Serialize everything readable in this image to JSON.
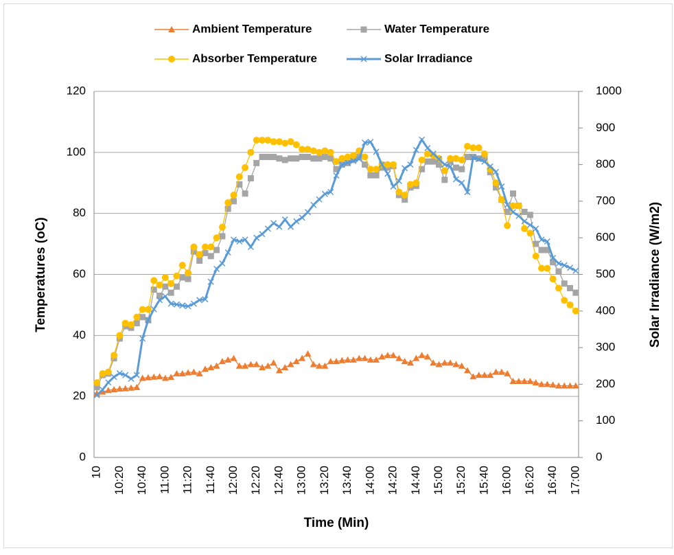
{
  "chart_data": {
    "type": "line",
    "x_label": "Time (Min)",
    "y_label": "Temperatures (oC)",
    "y2_label": "Solar Irradiance (W/m2)",
    "categories": [
      "10",
      null,
      null,
      null,
      "10:20",
      null,
      null,
      null,
      "10:40",
      null,
      null,
      null,
      "11:00",
      null,
      null,
      null,
      "11:20",
      null,
      null,
      null,
      "11:40",
      null,
      null,
      null,
      "12:00",
      null,
      null,
      null,
      "12:20",
      null,
      null,
      null,
      "12:40",
      null,
      null,
      null,
      "13:00",
      null,
      null,
      null,
      "13:20",
      null,
      null,
      null,
      "13:40",
      null,
      null,
      null,
      "14:00",
      null,
      null,
      null,
      "14:20",
      null,
      null,
      null,
      "14:40",
      null,
      null,
      null,
      "15:00",
      null,
      null,
      null,
      "15:20",
      null,
      null,
      null,
      "15:40",
      null,
      null,
      null,
      "16:00",
      null,
      null,
      null,
      "16:20",
      null,
      null,
      null,
      "16:40",
      null,
      null,
      null,
      "17:00"
    ],
    "series": [
      {
        "name": "Ambient Temperature",
        "color": "#ED7D31",
        "marker": "triangle",
        "values": [
          21,
          21.5,
          22,
          22.3,
          22.5,
          22.6,
          22.8,
          23,
          26,
          26.2,
          26.4,
          26.5,
          26,
          26.3,
          27.5,
          27.5,
          27.8,
          28,
          27.5,
          29,
          29.5,
          30,
          31.5,
          32,
          32.5,
          30,
          30,
          30.5,
          30.5,
          29.5,
          30,
          31,
          28.5,
          29.5,
          30.5,
          31.5,
          32.5,
          34,
          30.5,
          30,
          30,
          31.5,
          31.5,
          31.8,
          32,
          32,
          32.5,
          32.5,
          32,
          32,
          33,
          33.5,
          33.5,
          32.5,
          31.5,
          31,
          32.5,
          33.5,
          33,
          31,
          30.5,
          31,
          31,
          30.5,
          30,
          28.5,
          26.5,
          27,
          27,
          27,
          28,
          28,
          27.5,
          25,
          25,
          25,
          25,
          24.5,
          24,
          24,
          23.8,
          23.5,
          23.5,
          23.5,
          23.5
        ]
      },
      {
        "name": "Water Temperature",
        "color": "#A5A5A5",
        "marker": "square",
        "values": [
          23,
          27,
          27.5,
          32.5,
          39,
          43,
          42.5,
          44,
          46,
          45,
          55,
          53,
          56,
          54,
          56,
          59,
          58.5,
          67.5,
          64.5,
          67,
          66,
          68,
          72.5,
          81.5,
          84,
          89.5,
          86.5,
          91.5,
          96.5,
          98.5,
          98.5,
          98.5,
          98,
          97.5,
          98,
          98,
          98.5,
          98.5,
          98,
          98,
          98.5,
          98,
          94.5,
          96,
          96.5,
          97.5,
          98.5,
          96,
          92.5,
          92.5,
          95,
          95,
          95.5,
          86,
          84.5,
          88.5,
          89,
          94.5,
          97,
          97,
          96,
          91,
          97,
          95,
          94.5,
          98.5,
          98.5,
          98,
          98,
          93.5,
          88.5,
          84.5,
          80.5,
          86.5,
          82.5,
          80.5,
          79.5,
          70,
          68,
          68,
          64,
          61,
          57,
          55.5,
          54
        ]
      },
      {
        "name": "Absorber Temperature",
        "color": "#FFC000",
        "marker": "circle",
        "values": [
          24.5,
          27.5,
          28,
          33.5,
          40,
          44,
          43.5,
          46,
          48.5,
          48.5,
          58,
          56.5,
          59,
          57,
          59.5,
          63,
          60.5,
          69,
          66.5,
          69,
          69,
          72,
          75.5,
          83.5,
          86,
          92,
          95,
          100,
          104,
          104,
          104,
          103.5,
          103.5,
          103,
          103.5,
          102.5,
          101,
          101,
          100.5,
          100,
          100.5,
          100,
          97,
          98,
          98.5,
          99,
          100.5,
          98.5,
          94.5,
          94.5,
          96,
          96,
          96,
          87,
          86,
          89.5,
          90,
          97.5,
          99.5,
          99,
          98,
          94,
          98,
          98,
          97.5,
          102,
          101.5,
          101.5,
          99.5,
          94.5,
          90,
          84.5,
          76,
          82.5,
          82.5,
          75,
          73.5,
          66,
          62,
          62,
          58.5,
          55.5,
          51.5,
          50,
          48
        ]
      },
      {
        "name": "Solar Irradiance",
        "color": "#5B9BD5",
        "marker": "x",
        "axis": "y2",
        "values": [
          170,
          185,
          205,
          220,
          230,
          225,
          215,
          225,
          325,
          375,
          405,
          430,
          440,
          420,
          418,
          415,
          413,
          420,
          430,
          432,
          480,
          515,
          530,
          560,
          595,
          590,
          595,
          575,
          600,
          610,
          625,
          640,
          630,
          650,
          630,
          645,
          655,
          670,
          690,
          705,
          720,
          725,
          770,
          800,
          805,
          810,
          815,
          860,
          862,
          835,
          800,
          775,
          740,
          755,
          790,
          800,
          840,
          868,
          845,
          830,
          815,
          800,
          795,
          760,
          750,
          725,
          820,
          815,
          808,
          795,
          780,
          740,
          690,
          670,
          660,
          645,
          635,
          625,
          595,
          590,
          545,
          530,
          525,
          518,
          510
        ]
      }
    ],
    "ylim": [
      0,
      120
    ],
    "yticks": [
      0,
      20,
      40,
      60,
      80,
      100,
      120
    ],
    "y2lim": [
      0,
      1000
    ],
    "y2ticks": [
      0,
      100,
      200,
      300,
      400,
      500,
      600,
      700,
      800,
      900,
      1000
    ],
    "grid": true,
    "legend": "top"
  }
}
